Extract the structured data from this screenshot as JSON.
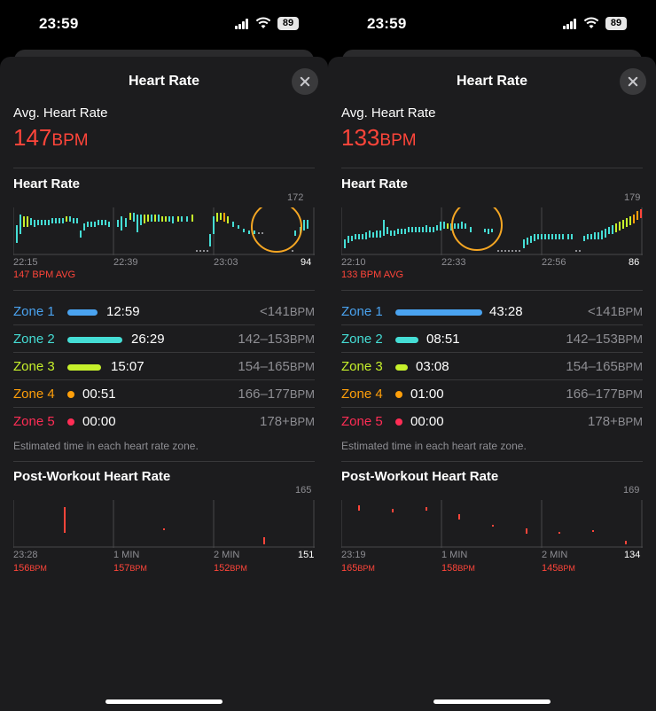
{
  "screens": [
    {
      "status": {
        "time": "23:59",
        "battery": "89"
      },
      "title": "Heart Rate",
      "avg_label": "Avg. Heart Rate",
      "avg_value": "147",
      "avg_unit": "BPM",
      "hr_section_title": "Heart Rate",
      "hr_chart": {
        "max": "172",
        "min": "94",
        "times": [
          "22:15",
          "22:39",
          "23:03"
        ],
        "avg_text": "147 BPM AVG"
      },
      "zones": [
        {
          "name": "Zone 1",
          "time": "12:59",
          "range": "<141",
          "unit": "BPM",
          "color": "#4aa3f0",
          "fraction": 0.47
        },
        {
          "name": "Zone 2",
          "time": "26:29",
          "range": "142–153",
          "unit": "BPM",
          "color": "#45ddd5",
          "fraction": 0.95
        },
        {
          "name": "Zone 3",
          "time": "15:07",
          "range": "154–165",
          "unit": "BPM",
          "color": "#c6f02b",
          "fraction": 0.55
        },
        {
          "name": "Zone 4",
          "time": "00:51",
          "range": "166–177",
          "unit": "BPM",
          "color": "#ff9f0a",
          "fraction": 0.0
        },
        {
          "name": "Zone 5",
          "time": "00:00",
          "range": "178+",
          "unit": "BPM",
          "color": "#ff2d55",
          "fraction": 0.0
        }
      ],
      "zones_note": "Estimated time in each heart rate zone.",
      "post_title": "Post-Workout Heart Rate",
      "post_chart": {
        "max": "165",
        "min": "151",
        "times": [
          "23:28",
          "1 MIN",
          "2 MIN"
        ],
        "values": [
          {
            "num": "156",
            "unit": "BPM"
          },
          {
            "num": "157",
            "unit": "BPM"
          },
          {
            "num": "152",
            "unit": "BPM"
          }
        ]
      }
    },
    {
      "status": {
        "time": "23:59",
        "battery": "89"
      },
      "title": "Heart Rate",
      "avg_label": "Avg. Heart Rate",
      "avg_value": "133",
      "avg_unit": "BPM",
      "hr_section_title": "Heart Rate",
      "hr_chart": {
        "max": "179",
        "min": "86",
        "times": [
          "22:10",
          "22:33",
          "22:56"
        ],
        "avg_text": "133 BPM AVG"
      },
      "zones": [
        {
          "name": "Zone 1",
          "time": "43:28",
          "range": "<141",
          "unit": "BPM",
          "color": "#4aa3f0",
          "fraction": 1.0
        },
        {
          "name": "Zone 2",
          "time": "08:51",
          "range": "142–153",
          "unit": "BPM",
          "color": "#45ddd5",
          "fraction": 0.2
        },
        {
          "name": "Zone 3",
          "time": "03:08",
          "range": "154–165",
          "unit": "BPM",
          "color": "#c6f02b",
          "fraction": 0.07
        },
        {
          "name": "Zone 4",
          "time": "01:00",
          "range": "166–177",
          "unit": "BPM",
          "color": "#ff9f0a",
          "fraction": 0.0
        },
        {
          "name": "Zone 5",
          "time": "00:00",
          "range": "178+",
          "unit": "BPM",
          "color": "#ff2d55",
          "fraction": 0.0
        }
      ],
      "zones_note": "Estimated time in each heart rate zone.",
      "post_title": "Post-Workout Heart Rate",
      "post_chart": {
        "max": "169",
        "min": "134",
        "times": [
          "23:19",
          "1 MIN",
          "2 MIN"
        ],
        "values": [
          {
            "num": "165",
            "unit": "BPM"
          },
          {
            "num": "158",
            "unit": "BPM"
          },
          {
            "num": "145",
            "unit": "BPM"
          }
        ]
      }
    }
  ]
}
